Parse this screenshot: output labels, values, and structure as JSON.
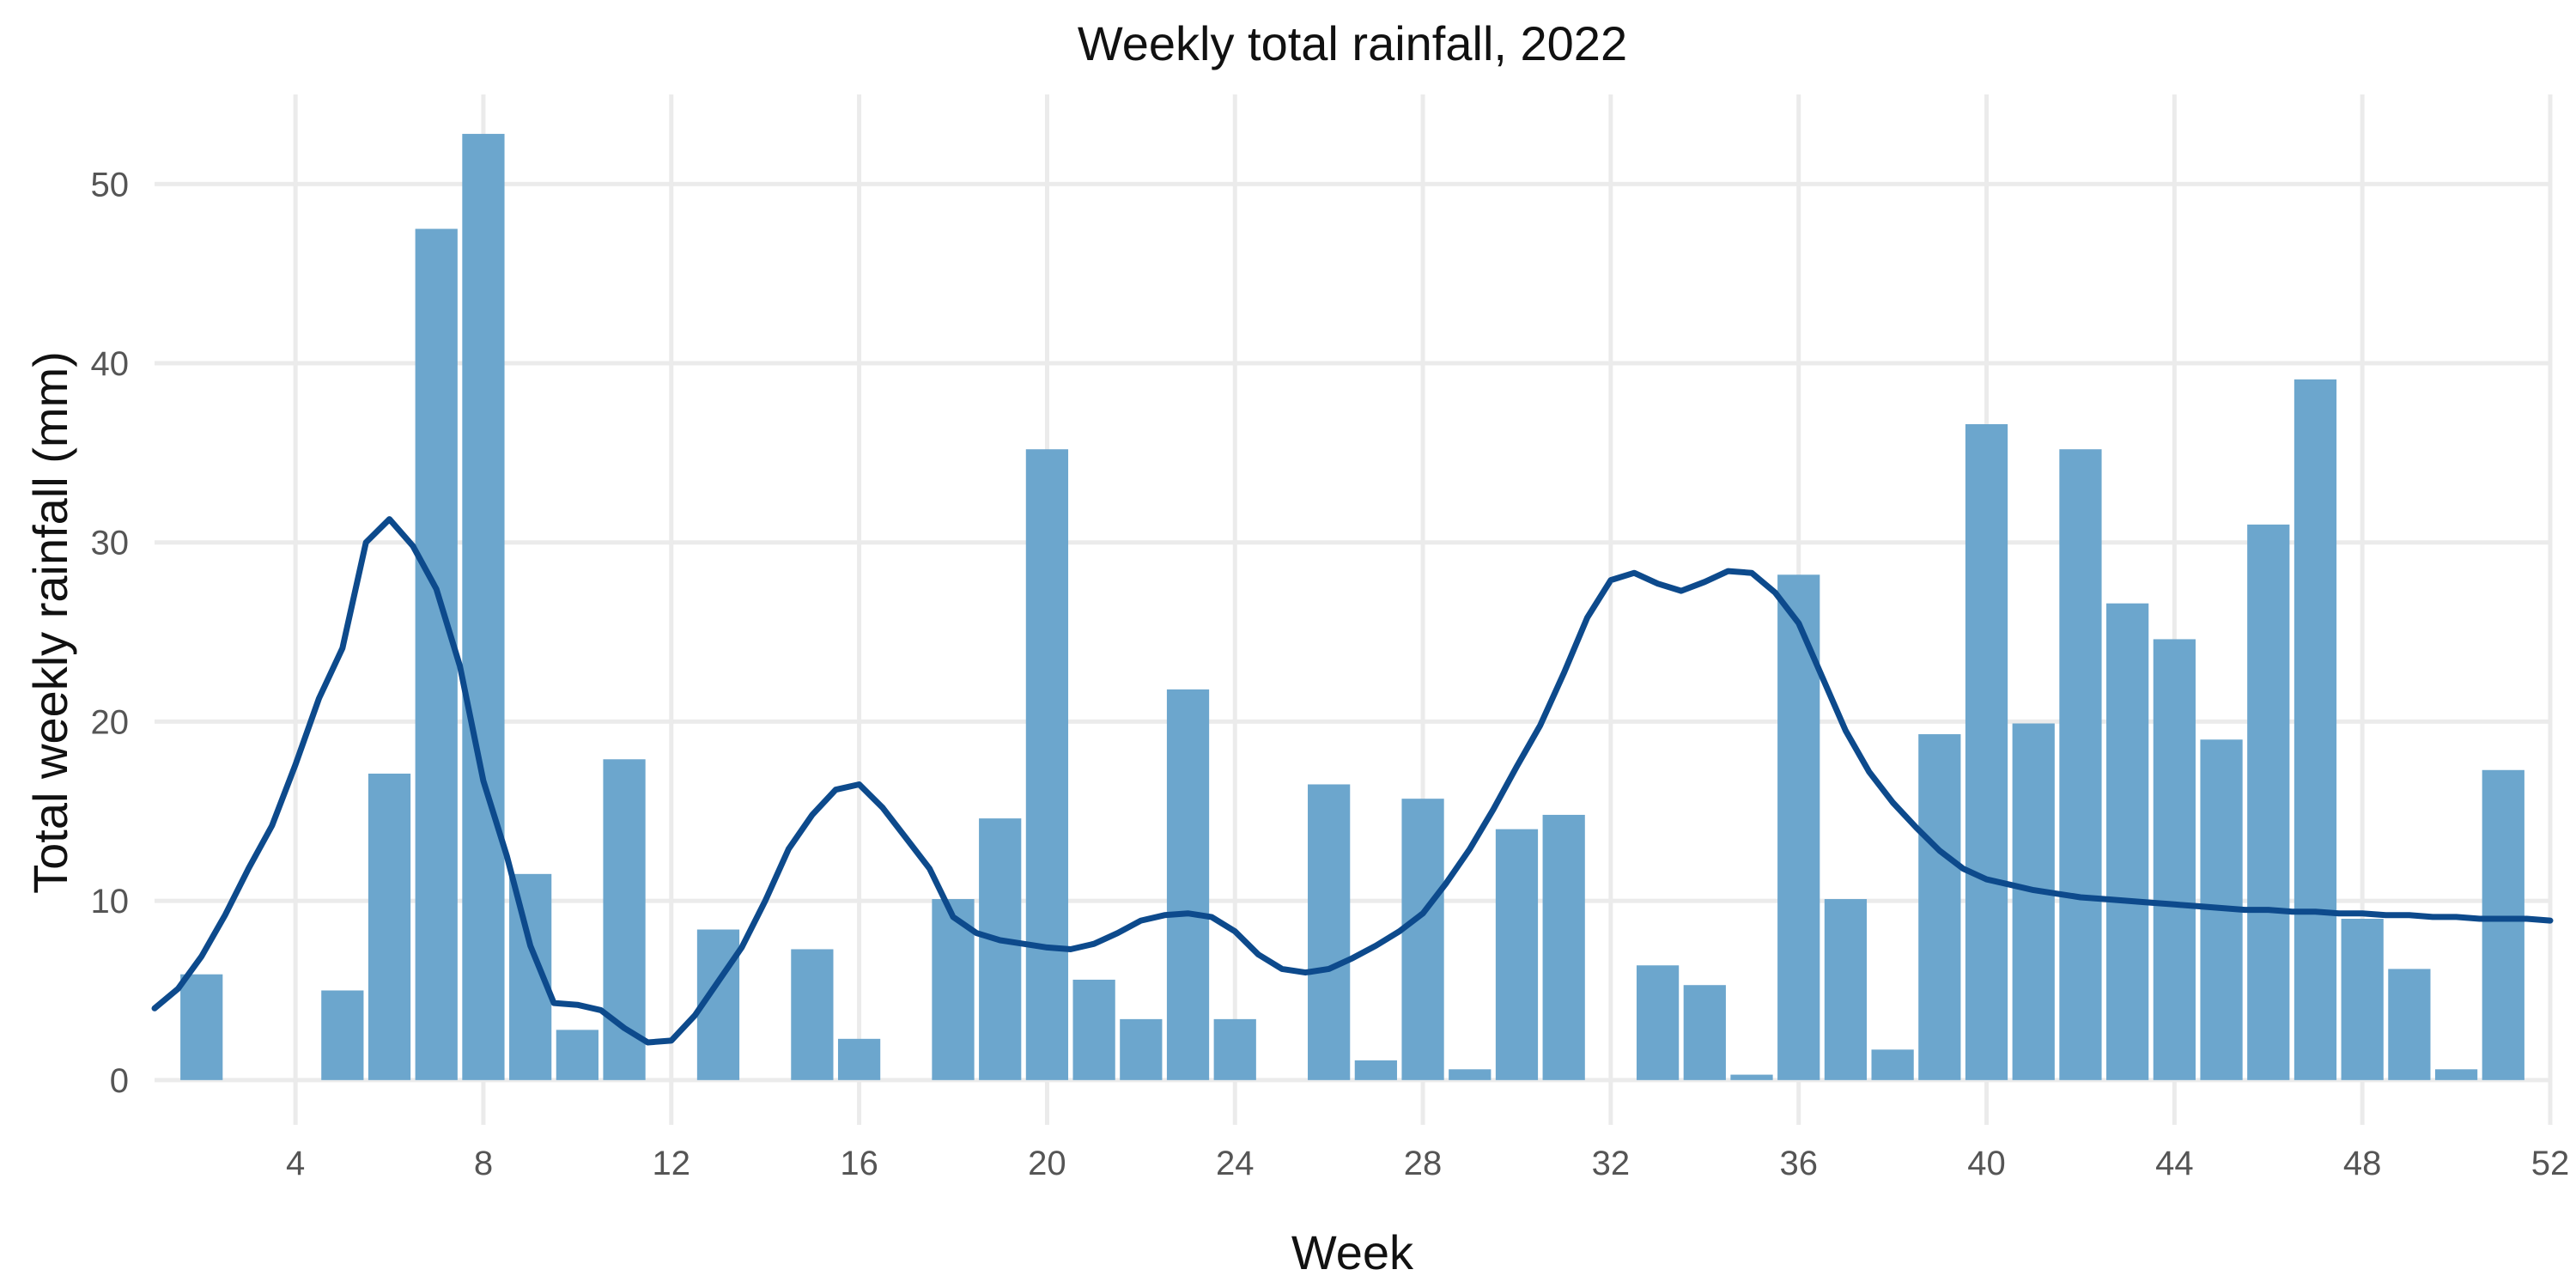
{
  "chart_data": {
    "type": "bar",
    "title": "Weekly total rainfall, 2022",
    "xlabel": "Week",
    "ylabel": "Total weekly rainfall (mm)",
    "xlim": [
      1,
      52
    ],
    "ylim": [
      -2.5,
      55
    ],
    "x_ticks": [
      4,
      8,
      12,
      16,
      20,
      24,
      28,
      32,
      36,
      40,
      44,
      48,
      52
    ],
    "y_ticks": [
      0,
      10,
      20,
      30,
      40,
      50
    ],
    "grid": true,
    "colors": {
      "bars": "#6ca6cd",
      "line": "#0d4a8c",
      "grid": "#ebebeb"
    },
    "series": [
      {
        "kind": "bar",
        "weeks": [
          2,
          5,
          6,
          7,
          8,
          9,
          10,
          11,
          13,
          15,
          16,
          18,
          19,
          20,
          21,
          22,
          23,
          24,
          26,
          27,
          28,
          29,
          30,
          31,
          33,
          34,
          35,
          36,
          37,
          38,
          39,
          40,
          41,
          42,
          43,
          44,
          45,
          46,
          47,
          48,
          49,
          50,
          51
        ],
        "values": [
          5.9,
          5.0,
          17.1,
          47.5,
          52.8,
          11.5,
          2.8,
          17.9,
          8.4,
          7.3,
          2.3,
          10.1,
          14.6,
          35.2,
          5.6,
          3.4,
          21.8,
          3.4,
          16.5,
          1.1,
          15.7,
          0.6,
          14.0,
          14.8,
          6.4,
          5.3,
          0.3,
          28.2,
          10.1,
          1.7,
          19.3,
          36.6,
          19.9,
          35.2,
          26.6,
          24.6,
          19.0,
          31.0,
          39.1,
          9.0,
          6.2,
          0.6,
          17.3
        ]
      },
      {
        "kind": "line",
        "x": [
          1,
          1.5,
          2,
          2.5,
          3,
          3.5,
          4,
          4.5,
          5,
          5.5,
          6,
          6.5,
          7,
          7.5,
          8,
          8.5,
          9,
          9.5,
          10,
          10.5,
          11,
          11.5,
          12,
          12.5,
          13,
          13.5,
          14,
          14.5,
          15,
          15.5,
          16,
          16.5,
          17,
          17.5,
          18,
          18.5,
          19,
          19.5,
          20,
          20.5,
          21,
          21.5,
          22,
          22.5,
          23,
          23.5,
          24,
          24.5,
          25,
          25.5,
          26,
          26.5,
          27,
          27.5,
          28,
          28.5,
          29,
          29.5,
          30,
          30.5,
          31,
          31.5,
          32,
          32.5,
          33,
          33.5,
          34,
          34.5,
          35,
          35.5,
          36,
          36.5,
          37,
          37.5,
          38,
          38.5,
          39,
          39.5,
          40,
          40.5,
          41,
          41.5,
          42,
          42.5,
          43,
          43.5,
          44,
          44.5,
          45,
          45.5,
          46,
          46.5,
          47,
          47.5,
          48,
          48.5,
          49,
          49.5,
          50,
          50.5,
          51,
          51.5,
          52
        ],
        "y": [
          4.0,
          5.1,
          6.9,
          9.2,
          11.8,
          14.2,
          17.6,
          21.3,
          24.1,
          30.0,
          31.3,
          29.8,
          27.4,
          23.1,
          16.7,
          12.5,
          7.5,
          4.3,
          4.2,
          3.9,
          2.9,
          2.1,
          2.2,
          3.6,
          5.5,
          7.4,
          10.0,
          12.9,
          14.8,
          16.2,
          16.5,
          15.2,
          13.5,
          11.8,
          9.1,
          8.2,
          7.8,
          7.6,
          7.4,
          7.3,
          7.6,
          8.2,
          8.9,
          9.2,
          9.3,
          9.1,
          8.3,
          7.0,
          6.2,
          6.0,
          6.2,
          6.8,
          7.5,
          8.3,
          9.3,
          11.0,
          12.9,
          15.1,
          17.5,
          19.8,
          22.7,
          25.8,
          27.9,
          28.3,
          27.7,
          27.3,
          27.8,
          28.4,
          28.3,
          27.2,
          25.5,
          22.5,
          19.5,
          17.2,
          15.5,
          14.1,
          12.8,
          11.8,
          11.2,
          10.9,
          10.6,
          10.4,
          10.2,
          10.1,
          10.0,
          9.9,
          9.8,
          9.7,
          9.6,
          9.5,
          9.5,
          9.4,
          9.4,
          9.3,
          9.3,
          9.2,
          9.2,
          9.1,
          9.1,
          9.0,
          9.0,
          9.0,
          8.9
        ]
      }
    ]
  }
}
